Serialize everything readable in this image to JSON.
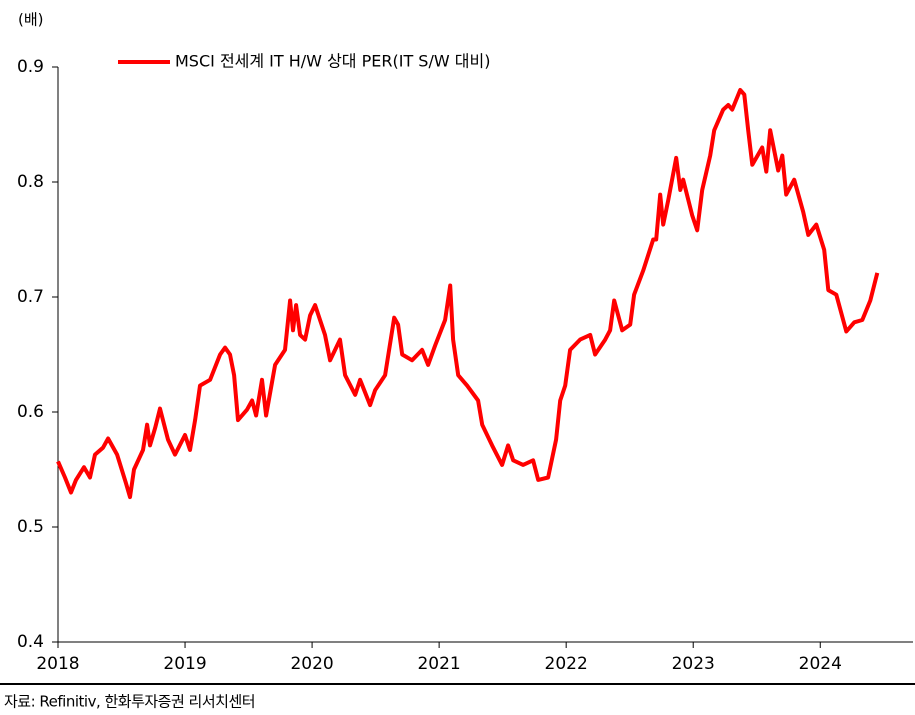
{
  "chart_data": {
    "type": "line",
    "y_unit_label": "(배)",
    "source": "자료: Refinitiv, 한화투자증권 리서치센터",
    "xlim": [
      2018,
      2024.73
    ],
    "xticks": [
      2018,
      2019,
      2020,
      2021,
      2022,
      2023,
      2024
    ],
    "ylim": [
      0.4,
      0.9
    ],
    "yticks": [
      0.9,
      0.8,
      0.7,
      0.6,
      0.5,
      0.4
    ],
    "grid": false,
    "legend": "top-left",
    "x": [
      2018.0,
      2018.055,
      2018.102,
      2018.142,
      2018.205,
      2018.252,
      2018.291,
      2018.354,
      2018.394,
      2018.465,
      2018.535,
      2018.567,
      2018.598,
      2018.669,
      2018.701,
      2018.724,
      2018.764,
      2018.803,
      2018.866,
      2018.921,
      2019.0,
      2019.039,
      2019.079,
      2019.118,
      2019.197,
      2019.276,
      2019.315,
      2019.354,
      2019.386,
      2019.417,
      2019.488,
      2019.528,
      2019.559,
      2019.606,
      2019.638,
      2019.709,
      2019.787,
      2019.827,
      2019.85,
      2019.874,
      2019.906,
      2019.945,
      2019.984,
      2020.024,
      2020.102,
      2020.142,
      2020.22,
      2020.26,
      2020.339,
      2020.378,
      2020.457,
      2020.496,
      2020.575,
      2020.646,
      2020.677,
      2020.709,
      2020.787,
      2020.866,
      2020.913,
      2020.969,
      2021.047,
      2021.087,
      2021.11,
      2021.15,
      2021.22,
      2021.307,
      2021.339,
      2021.417,
      2021.496,
      2021.543,
      2021.583,
      2021.661,
      2021.74,
      2021.78,
      2021.858,
      2021.921,
      2021.953,
      2021.992,
      2022.031,
      2022.11,
      2022.189,
      2022.228,
      2022.307,
      2022.346,
      2022.378,
      2022.441,
      2022.504,
      2022.535,
      2022.606,
      2022.685,
      2022.709,
      2022.74,
      2022.764,
      2022.803,
      2022.866,
      2022.898,
      2022.921,
      2022.992,
      2023.031,
      2023.071,
      2023.134,
      2023.165,
      2023.236,
      2023.276,
      2023.307,
      2023.37,
      2023.402,
      2023.433,
      2023.465,
      2023.543,
      2023.575,
      2023.606,
      2023.669,
      2023.701,
      2023.732,
      2023.795,
      2023.866,
      2023.906,
      2023.969,
      2024.031,
      2024.063,
      2024.126,
      2024.205,
      2024.268,
      2024.331,
      2024.394,
      2024.449
    ],
    "series": [
      {
        "name": "MSCI 전세계 IT H/W 상대 PER(IT S/W 대비)",
        "color": "#ff0000",
        "values": [
          0.557,
          0.543,
          0.53,
          0.541,
          0.552,
          0.543,
          0.563,
          0.569,
          0.577,
          0.563,
          0.538,
          0.526,
          0.55,
          0.567,
          0.589,
          0.571,
          0.586,
          0.603,
          0.576,
          0.563,
          0.58,
          0.567,
          0.593,
          0.623,
          0.628,
          0.65,
          0.656,
          0.65,
          0.632,
          0.593,
          0.602,
          0.61,
          0.597,
          0.628,
          0.597,
          0.641,
          0.654,
          0.697,
          0.671,
          0.693,
          0.667,
          0.663,
          0.684,
          0.693,
          0.667,
          0.645,
          0.663,
          0.632,
          0.615,
          0.628,
          0.606,
          0.619,
          0.632,
          0.682,
          0.676,
          0.65,
          0.645,
          0.654,
          0.641,
          0.658,
          0.68,
          0.71,
          0.663,
          0.632,
          0.623,
          0.61,
          0.589,
          0.571,
          0.554,
          0.571,
          0.558,
          0.554,
          0.558,
          0.541,
          0.543,
          0.576,
          0.61,
          0.623,
          0.654,
          0.663,
          0.667,
          0.65,
          0.663,
          0.671,
          0.697,
          0.671,
          0.676,
          0.702,
          0.723,
          0.75,
          0.75,
          0.789,
          0.763,
          0.784,
          0.821,
          0.793,
          0.802,
          0.771,
          0.758,
          0.793,
          0.823,
          0.845,
          0.863,
          0.867,
          0.863,
          0.88,
          0.876,
          0.845,
          0.815,
          0.83,
          0.809,
          0.845,
          0.81,
          0.823,
          0.789,
          0.802,
          0.774,
          0.754,
          0.763,
          0.741,
          0.706,
          0.702,
          0.67,
          0.678,
          0.68,
          0.697,
          0.721
        ]
      }
    ]
  }
}
